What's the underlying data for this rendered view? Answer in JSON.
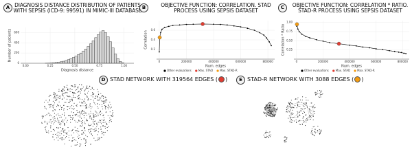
{
  "chart_data": [
    {
      "type": "histogram",
      "label": "A",
      "title": "DIAGNOSIS DISTANCE DISTRIBUTION OF PATIENTS WITH SEPSIS (ICD-9: 99591) IN MIMIC-III DATABASE",
      "xlabel": "Diagnosis distance",
      "ylabel": "Number of patients",
      "bins": [
        0.2,
        0.225,
        0.25,
        0.275,
        0.3,
        0.325,
        0.35,
        0.375,
        0.4,
        0.425,
        0.45,
        0.475,
        0.5,
        0.525,
        0.55,
        0.575,
        0.6,
        0.625,
        0.65,
        0.675,
        0.7,
        0.725,
        0.75,
        0.775,
        0.8,
        0.825,
        0.85,
        0.875,
        0.9,
        0.925,
        0.95,
        0.975,
        1.0
      ],
      "values": [
        2,
        4,
        6,
        10,
        15,
        22,
        30,
        40,
        55,
        70,
        90,
        115,
        140,
        170,
        200,
        240,
        280,
        330,
        380,
        440,
        500,
        560,
        610,
        640,
        600,
        520,
        420,
        300,
        180,
        90,
        35,
        8
      ],
      "color": "#d9d9d9",
      "xlim": [
        -0.05,
        1.1
      ],
      "xticks": [
        {
          "value": 0,
          "label": "0.00"
        },
        {
          "value": 0.25,
          "label": "0.25"
        },
        {
          "value": 0.5,
          "label": "0.50"
        },
        {
          "value": 0.75,
          "label": "0.75"
        },
        {
          "value": 1,
          "label": "1.00"
        }
      ],
      "ylim": [
        0,
        700
      ],
      "yticks": [
        0,
        200,
        400,
        600
      ]
    },
    {
      "type": "line",
      "label": "B",
      "title": "OBJECTIVE FUNCTION: CORRELATION. STAD PROCESS USING SEPSIS DATASET",
      "xlabel": "Num. edges",
      "ylabel": "Correlation",
      "legend": "bottom",
      "series": [
        {
          "name": "Other evaluations",
          "color": "#000000",
          "x": [
            0,
            3088,
            10000,
            20000,
            40000,
            70000,
            100000,
            150000,
            200000,
            250000,
            319564,
            400000,
            450000,
            500000,
            550000,
            600000,
            650000,
            700000,
            740000,
            770000,
            790000,
            810000,
            825000
          ],
          "values": [
            0.15,
            0.45,
            0.55,
            0.62,
            0.66,
            0.68,
            0.7,
            0.71,
            0.72,
            0.725,
            0.73,
            0.725,
            0.72,
            0.71,
            0.69,
            0.67,
            0.64,
            0.6,
            0.55,
            0.5,
            0.44,
            0.36,
            0.28
          ]
        },
        {
          "name": "Max. STAD",
          "color": "#e03c31",
          "x": [
            319564
          ],
          "values": [
            0.73
          ]
        },
        {
          "name": "Max. STAD-R",
          "color": "#f39c12",
          "x": [
            3088
          ],
          "values": [
            0.45
          ]
        }
      ],
      "xlim": [
        -20000,
        850000
      ],
      "xticks": [
        0,
        200000,
        400000,
        600000,
        800000
      ],
      "ylim": [
        0,
        0.8
      ],
      "yticks": [
        0.2,
        0.4,
        0.6
      ]
    },
    {
      "type": "line",
      "label": "C",
      "title": "OBJECTIVE FUNCTION: CORRELATION * RATIO. STAD-R PROCESS USING SEPSIS DATASET",
      "xlabel": "Num. edges",
      "ylabel": "Correlation * Ratio",
      "legend": "bottom",
      "series": [
        {
          "name": "Other evaluations",
          "color": "#000000",
          "x": [
            0,
            3088,
            10000,
            20000,
            40000,
            70000,
            100000,
            150000,
            200000,
            250000,
            319564,
            400000,
            450000,
            500000,
            550000,
            600000,
            650000,
            700000,
            740000,
            770000,
            790000,
            810000,
            825000
          ],
          "values": [
            0.9,
            0.95,
            0.82,
            0.75,
            0.68,
            0.62,
            0.58,
            0.53,
            0.49,
            0.45,
            0.42,
            0.38,
            0.36,
            0.33,
            0.31,
            0.28,
            0.26,
            0.23,
            0.21,
            0.19,
            0.18,
            0.16,
            0.15
          ]
        },
        {
          "name": "Max. STAD",
          "color": "#e03c31",
          "x": [
            319564
          ],
          "values": [
            0.42
          ]
        },
        {
          "name": "Max. STAD-R",
          "color": "#f39c12",
          "x": [
            3088
          ],
          "values": [
            0.95
          ]
        }
      ],
      "xlim": [
        -20000,
        850000
      ],
      "xticks": [
        0,
        200000,
        400000,
        600000,
        800000
      ],
      "ylim": [
        0,
        1.05
      ],
      "yticks": [
        {
          "value": 0.25,
          "label": "0.25"
        },
        {
          "value": 0.5,
          "label": "0.50"
        },
        {
          "value": 0.75,
          "label": "0.75"
        },
        {
          "value": 1,
          "label": "1.00"
        }
      ]
    }
  ],
  "networks": [
    {
      "label": "D",
      "title": "STAD NETWORK WITH 319564 EDGES (",
      "title_end": ")",
      "marker_color": "#e03c31"
    },
    {
      "label": "E",
      "title": "STAD-R NETWORK WITH 3088 EDGES (",
      "title_end": ")",
      "marker_color": "#f39c12"
    }
  ]
}
